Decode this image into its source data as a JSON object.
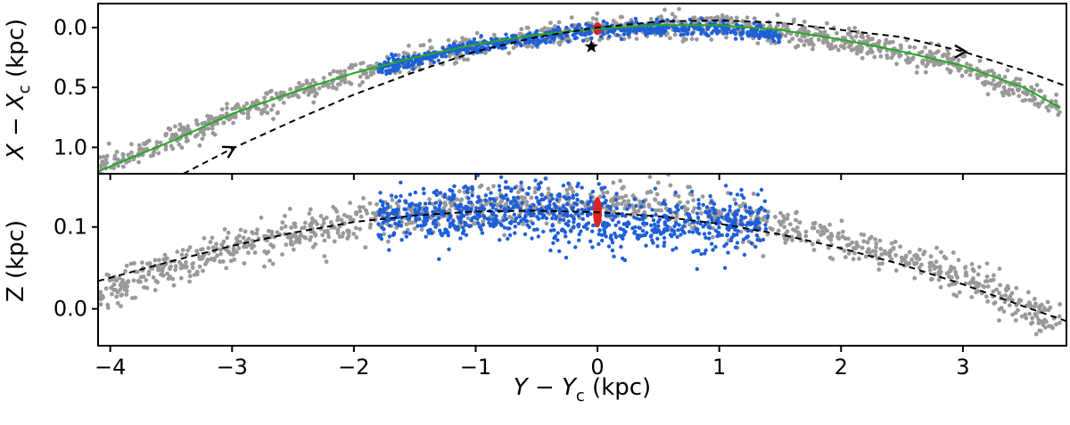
{
  "figure": {
    "caption": ""
  },
  "chart_data": [
    {
      "type": "scatter",
      "panel": "top",
      "title": "",
      "xlabel_main": "Y − Y",
      "xlabel_sub": "c",
      "xlabel_unit": " (kpc)",
      "ylabel_main": "X − X",
      "ylabel_sub": "c",
      "ylabel_unit": " (kpc)",
      "xlim": [
        -4.1,
        3.85
      ],
      "ylim": [
        1.22,
        -0.2
      ],
      "y_inverted": true,
      "y_ticks": [
        0.0,
        0.5,
        1.0
      ],
      "y_tick_labels": [
        "0.0",
        "0.5",
        "1.0"
      ],
      "x_ticks": [
        -4,
        -3,
        -2,
        -1,
        0,
        1,
        2,
        3
      ],
      "grid": false,
      "series": [
        {
          "name": "gray stars (outer tidal tails)",
          "color": "#999999",
          "track": {
            "x": [
              -4.1,
              -3,
              -2,
              -1,
              0,
              1,
              2,
              3,
              3.8
            ],
            "y": [
              1.18,
              0.72,
              0.38,
              0.14,
              0.01,
              -0.02,
              0.1,
              0.32,
              0.68
            ]
          },
          "x_range": [
            -4.1,
            3.8
          ],
          "spread": 0.05,
          "count": 1200
        },
        {
          "name": "blue stars (inner region)",
          "color": "#1f5fd8",
          "track": {
            "x": [
              -1.8,
              -1,
              0,
              1,
              1.5
            ],
            "y": [
              0.35,
              0.15,
              0.02,
              0.0,
              0.06
            ]
          },
          "x_range": [
            -1.8,
            1.5
          ],
          "spread": 0.03,
          "count": 650
        },
        {
          "name": "cluster core",
          "color": "#dd2222",
          "points": {
            "x": [
              0.0
            ],
            "y": [
              0.01
            ]
          }
        },
        {
          "name": "fitted track",
          "color": "#22aa22",
          "style": "solid",
          "x": [
            -4.1,
            -3.5,
            -3,
            -2.5,
            -2,
            -1.5,
            -1,
            -0.5,
            0,
            0.5,
            1,
            1.5,
            2,
            2.5,
            3,
            3.5,
            3.8
          ],
          "y": [
            1.2,
            0.95,
            0.72,
            0.54,
            0.38,
            0.25,
            0.14,
            0.06,
            0.01,
            -0.02,
            -0.02,
            0.02,
            0.1,
            0.2,
            0.32,
            0.5,
            0.67
          ]
        },
        {
          "name": "orbit",
          "color": "#000000",
          "style": "dashed",
          "x": [
            -3.4,
            -3,
            -2.5,
            -2,
            -1.5,
            -1,
            -0.5,
            0,
            0.5,
            1,
            1.5,
            2,
            2.5,
            3,
            3.5,
            3.85
          ],
          "y": [
            1.22,
            1.01,
            0.78,
            0.56,
            0.37,
            0.2,
            0.08,
            0.0,
            -0.05,
            -0.06,
            -0.04,
            0.02,
            0.08,
            0.2,
            0.36,
            0.49
          ]
        }
      ],
      "arrows": [
        {
          "x": -3.0,
          "y": 1.01,
          "direction": "up-right"
        },
        {
          "x": 3.0,
          "y": 0.2,
          "direction": "right"
        }
      ],
      "markers": [
        {
          "symbol": "star",
          "x": -0.05,
          "y": 0.16,
          "color": "#000000"
        }
      ]
    },
    {
      "type": "scatter",
      "panel": "bottom",
      "title": "",
      "xlabel_main": "Y − Y",
      "xlabel_sub": "c",
      "xlabel_unit": " (kpc)",
      "ylabel": "Z (kpc)",
      "xlim": [
        -4.1,
        3.85
      ],
      "ylim": [
        -0.045,
        0.165
      ],
      "y_ticks": [
        0.0,
        0.1
      ],
      "y_tick_labels": [
        "0.0",
        "0.1"
      ],
      "x_ticks": [
        -4,
        -3,
        -2,
        -1,
        0,
        1,
        2,
        3
      ],
      "x_tick_labels": [
        "−4",
        "−3",
        "−2",
        "−1",
        "0",
        "1",
        "2",
        "3"
      ],
      "grid": false,
      "series": [
        {
          "name": "gray stars (outer tidal tails)",
          "color": "#999999",
          "track": {
            "x": [
              -4.1,
              -3,
              -2,
              -1,
              0,
              1,
              2,
              3,
              3.8
            ],
            "y": [
              0.02,
              0.075,
              0.105,
              0.125,
              0.13,
              0.115,
              0.085,
              0.04,
              -0.02
            ]
          },
          "x_range": [
            -4.1,
            3.8
          ],
          "spread": 0.012,
          "count": 1200
        },
        {
          "name": "blue stars (inner region)",
          "color": "#1f5fd8",
          "track": {
            "x": [
              -1.8,
              -1,
              0,
              0.5,
              1,
              1.4
            ],
            "y": [
              0.112,
              0.12,
              0.11,
              0.1,
              0.105,
              0.11
            ]
          },
          "x_range": [
            -1.8,
            1.4
          ],
          "spread": 0.018,
          "count": 900
        },
        {
          "name": "cluster core",
          "color": "#dd2222",
          "points": {
            "x": [
              0.0
            ],
            "y": [
              0.118
            ]
          }
        },
        {
          "name": "orbit",
          "color": "#000000",
          "style": "dashed",
          "x": [
            -4.1,
            -3.5,
            -3,
            -2.5,
            -2,
            -1.5,
            -1,
            -0.5,
            0,
            0.5,
            1,
            1.5,
            2,
            2.5,
            3,
            3.5,
            3.85
          ],
          "y": [
            0.034,
            0.058,
            0.077,
            0.093,
            0.106,
            0.114,
            0.119,
            0.12,
            0.118,
            0.113,
            0.104,
            0.091,
            0.074,
            0.054,
            0.03,
            0.003,
            -0.015
          ]
        }
      ]
    }
  ]
}
